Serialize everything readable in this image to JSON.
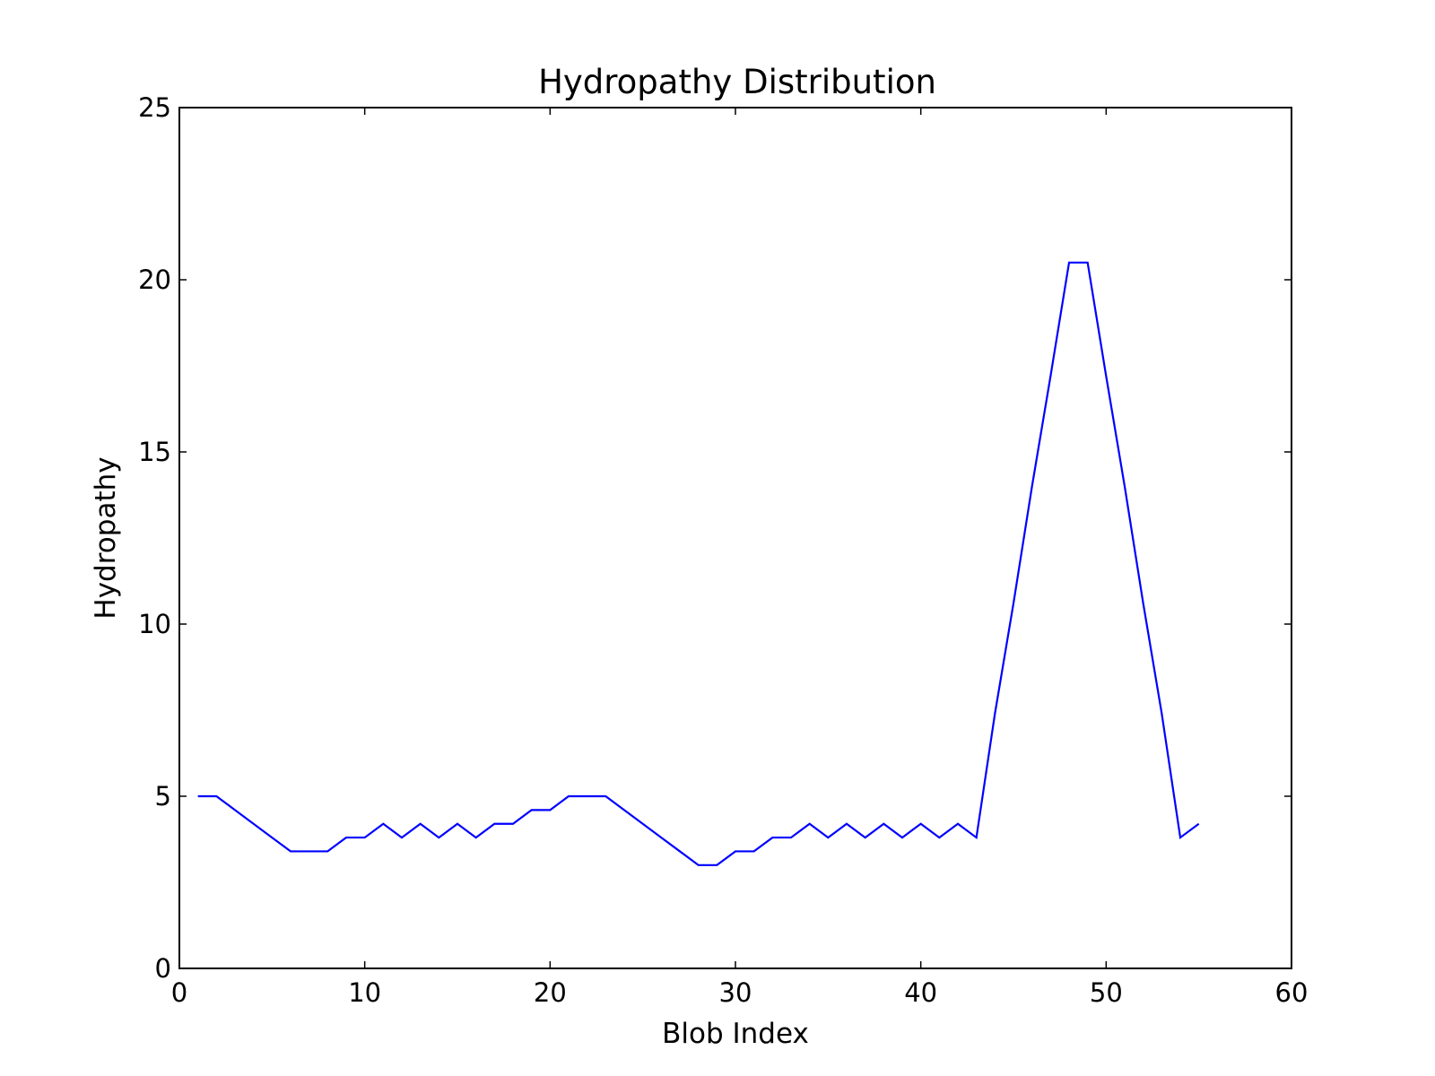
{
  "chart_data": {
    "type": "line",
    "title": "Hydropathy Distribution",
    "xlabel": "Blob Index",
    "ylabel": "Hydropathy",
    "xlim": [
      0,
      60
    ],
    "ylim": [
      0,
      25
    ],
    "xticks": [
      0,
      10,
      20,
      30,
      40,
      50,
      60
    ],
    "yticks": [
      0,
      5,
      10,
      15,
      20,
      25
    ],
    "grid": false,
    "legend": false,
    "series": [
      {
        "color": "#0000ff",
        "x": [
          1,
          2,
          3,
          4,
          5,
          6,
          7,
          8,
          9,
          10,
          11,
          12,
          13,
          14,
          15,
          16,
          17,
          18,
          19,
          20,
          21,
          22,
          23,
          24,
          25,
          26,
          27,
          28,
          29,
          30,
          31,
          32,
          33,
          34,
          35,
          36,
          37,
          38,
          39,
          40,
          41,
          42,
          43,
          44,
          45,
          46,
          47,
          48,
          49,
          50,
          51,
          52,
          53,
          54,
          55
        ],
        "y": [
          5.0,
          5.0,
          4.6,
          4.2,
          3.8,
          3.4,
          3.4,
          3.4,
          3.8,
          3.8,
          4.2,
          3.8,
          4.2,
          3.8,
          4.2,
          3.8,
          4.2,
          4.2,
          4.6,
          4.6,
          5.0,
          5.0,
          5.0,
          4.6,
          4.2,
          3.8,
          3.4,
          3.0,
          3.0,
          3.4,
          3.4,
          3.8,
          3.8,
          4.2,
          3.8,
          4.2,
          3.8,
          4.2,
          3.8,
          4.2,
          3.8,
          4.2,
          3.8,
          7.4,
          10.6,
          14.0,
          17.2,
          20.5,
          20.5,
          17.2,
          14.0,
          10.6,
          7.4,
          3.8,
          4.2
        ]
      }
    ]
  }
}
